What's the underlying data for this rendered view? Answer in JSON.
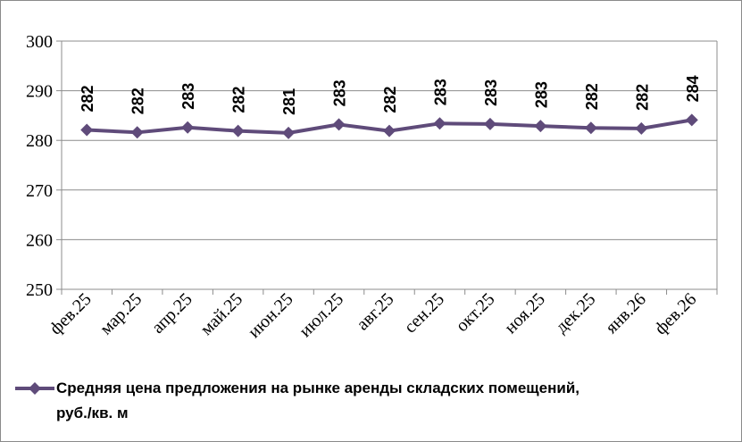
{
  "chart_data": {
    "type": "line",
    "categories": [
      "фев.25",
      "мар.25",
      "апр.25",
      "май.25",
      "июн.25",
      "июл.25",
      "авг.25",
      "сен.25",
      "окт.25",
      "ноя.25",
      "дек.25",
      "янв.26",
      "фев.26"
    ],
    "series": [
      {
        "name": "Средняя цена предложения на рынке аренды складских помещений, руб./кв. м",
        "values": [
          282.1,
          281.6,
          282.6,
          281.9,
          281.5,
          283.2,
          281.9,
          283.4,
          283.3,
          282.9,
          282.5,
          282.4,
          284.1
        ],
        "labels": [
          "282",
          "282",
          "283",
          "282",
          "281",
          "283",
          "282",
          "283",
          "283",
          "283",
          "282",
          "282",
          "284"
        ],
        "color": "#5f4b7a",
        "marker": "diamond"
      }
    ],
    "ylim": [
      250,
      300
    ],
    "yticks": [
      "250",
      "260",
      "270",
      "280",
      "290",
      "300"
    ],
    "grid": true,
    "legend_position": "bottom"
  },
  "legend": {
    "line1": "Средняя цена предложения на рынке аренды складских помещений,",
    "line2": "руб./кв. м"
  }
}
